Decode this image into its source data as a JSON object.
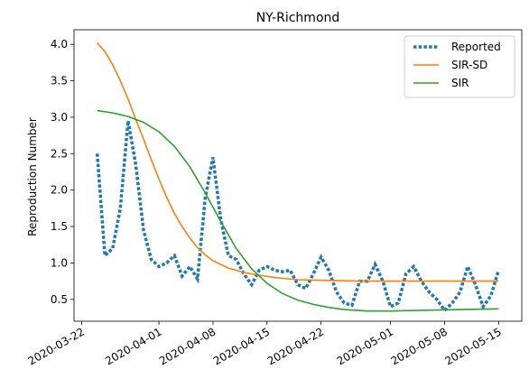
{
  "chart_data": {
    "type": "line",
    "title": "NY-Richmond",
    "xlabel": "",
    "ylabel": "Reproduction Number",
    "x_range": [
      "2020-03-21",
      "2020-05-18"
    ],
    "ylim": [
      0.2,
      4.2
    ],
    "x_ticks": [
      "2020-03-22",
      "2020-04-01",
      "2020-04-08",
      "2020-04-15",
      "2020-04-22",
      "2020-05-01",
      "2020-05-08",
      "2020-05-15"
    ],
    "y_ticks": [
      "0.5",
      "1.0",
      "1.5",
      "2.0",
      "2.5",
      "3.0",
      "3.5",
      "4.0"
    ],
    "grid": false,
    "legend": "top-right",
    "series": [
      {
        "name": "Reported",
        "style": "dotted",
        "color": "#1f77b4",
        "x": [
          "2020-03-24",
          "2020-03-25",
          "2020-03-26",
          "2020-03-27",
          "2020-03-28",
          "2020-03-29",
          "2020-03-30",
          "2020-03-31",
          "2020-04-01",
          "2020-04-02",
          "2020-04-03",
          "2020-04-04",
          "2020-04-05",
          "2020-04-06",
          "2020-04-07",
          "2020-04-08",
          "2020-04-09",
          "2020-04-10",
          "2020-04-11",
          "2020-04-12",
          "2020-04-13",
          "2020-04-14",
          "2020-04-15",
          "2020-04-16",
          "2020-04-17",
          "2020-04-18",
          "2020-04-19",
          "2020-04-20",
          "2020-04-21",
          "2020-04-22",
          "2020-04-23",
          "2020-04-24",
          "2020-04-25",
          "2020-04-26",
          "2020-04-27",
          "2020-04-28",
          "2020-04-29",
          "2020-04-30",
          "2020-05-01",
          "2020-05-02",
          "2020-05-03",
          "2020-05-04",
          "2020-05-05",
          "2020-05-06",
          "2020-05-07",
          "2020-05-08",
          "2020-05-09",
          "2020-05-10",
          "2020-05-11",
          "2020-05-12",
          "2020-05-13",
          "2020-05-14",
          "2020-05-15"
        ],
        "values": [
          2.5,
          1.1,
          1.2,
          1.75,
          2.95,
          2.35,
          1.45,
          1.05,
          0.95,
          1.0,
          1.1,
          0.82,
          0.95,
          0.78,
          1.9,
          2.45,
          1.6,
          1.1,
          1.05,
          0.85,
          0.7,
          0.9,
          0.95,
          0.9,
          0.88,
          0.9,
          0.7,
          0.65,
          0.85,
          1.08,
          0.9,
          0.6,
          0.45,
          0.42,
          0.75,
          0.75,
          0.98,
          0.75,
          0.4,
          0.45,
          0.85,
          0.95,
          0.75,
          0.6,
          0.5,
          0.35,
          0.45,
          0.6,
          0.95,
          0.7,
          0.4,
          0.55,
          0.9
        ]
      },
      {
        "name": "SIR-SD",
        "style": "solid",
        "color": "#ff7f0e",
        "x": [
          "2020-03-24",
          "2020-03-25",
          "2020-03-26",
          "2020-03-27",
          "2020-03-28",
          "2020-03-29",
          "2020-03-30",
          "2020-03-31",
          "2020-04-01",
          "2020-04-02",
          "2020-04-03",
          "2020-04-04",
          "2020-04-05",
          "2020-04-06",
          "2020-04-07",
          "2020-04-08",
          "2020-04-10",
          "2020-04-12",
          "2020-04-14",
          "2020-04-16",
          "2020-04-19",
          "2020-04-23",
          "2020-04-27",
          "2020-05-01",
          "2020-05-05",
          "2020-05-10",
          "2020-05-15"
        ],
        "values": [
          4.02,
          3.9,
          3.72,
          3.5,
          3.25,
          2.97,
          2.7,
          2.42,
          2.15,
          1.9,
          1.68,
          1.5,
          1.34,
          1.21,
          1.11,
          1.03,
          0.93,
          0.87,
          0.83,
          0.8,
          0.77,
          0.76,
          0.75,
          0.75,
          0.75,
          0.75,
          0.75
        ]
      },
      {
        "name": "SIR",
        "style": "solid",
        "color": "#2ca02c",
        "x": [
          "2020-03-24",
          "2020-03-26",
          "2020-03-28",
          "2020-03-30",
          "2020-04-01",
          "2020-04-03",
          "2020-04-05",
          "2020-04-07",
          "2020-04-09",
          "2020-04-11",
          "2020-04-13",
          "2020-04-15",
          "2020-04-17",
          "2020-04-19",
          "2020-04-21",
          "2020-04-23",
          "2020-04-25",
          "2020-04-28",
          "2020-05-01",
          "2020-05-05",
          "2020-05-10",
          "2020-05-15"
        ],
        "values": [
          3.09,
          3.06,
          3.01,
          2.93,
          2.8,
          2.6,
          2.32,
          1.96,
          1.57,
          1.2,
          0.92,
          0.72,
          0.58,
          0.49,
          0.43,
          0.39,
          0.36,
          0.34,
          0.34,
          0.35,
          0.36,
          0.37
        ]
      }
    ]
  }
}
